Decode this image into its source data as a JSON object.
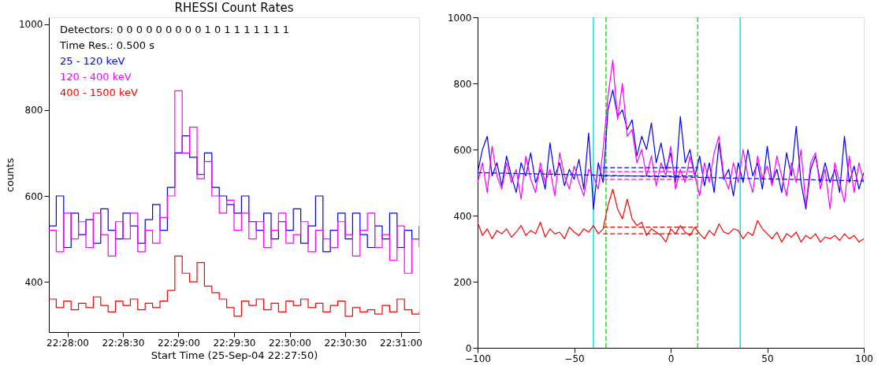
{
  "chart_data": [
    {
      "type": "step",
      "title": "RHESSI Count Rates",
      "xlabel": "Start Time (25-Sep-04 22:27:50)",
      "ylabel": "counts",
      "annotations": [
        "Detectors:  0 0 0 0 0 0 0 0 0 1 0 1 1 1 1 1 1 1",
        "Time Res.: 0.500 s"
      ],
      "legend": "top left",
      "x": [
        22.463889,
        22.465,
        22.466111,
        22.467222,
        22.468333,
        22.469444,
        22.470556,
        22.471667,
        22.472778,
        22.473889,
        22.475,
        22.476111,
        22.477222,
        22.478333,
        22.479444,
        22.480556,
        22.481667,
        22.482778,
        22.483889,
        22.485,
        22.486111,
        22.487222,
        22.488333,
        22.489444,
        22.490556,
        22.491667,
        22.492778,
        22.493889,
        22.495,
        22.496111,
        22.497222,
        22.498333,
        22.499444,
        22.500556,
        22.501667,
        22.502778,
        22.503889,
        22.505,
        22.506111,
        22.507222,
        22.508333,
        22.509444,
        22.510556,
        22.511667,
        22.512778,
        22.513889,
        22.515,
        22.516111,
        22.517222,
        22.518333,
        22.519444
      ],
      "series": [
        {
          "name": " 25 - 120 keV",
          "color": "#0000ff",
          "values": [
            530,
            600,
            480,
            560,
            510,
            545,
            490,
            570,
            520,
            500,
            560,
            530,
            490,
            545,
            580,
            520,
            620,
            700,
            740,
            690,
            650,
            700,
            620,
            600,
            580,
            560,
            600,
            540,
            520,
            560,
            500,
            540,
            520,
            570,
            490,
            530,
            600,
            470,
            520,
            560,
            500,
            560,
            510,
            480,
            530,
            500,
            560,
            480,
            520,
            500,
            530
          ]
        },
        {
          "name": "120 - 400 keV",
          "color": "#ff00ff",
          "values": [
            520,
            470,
            560,
            500,
            540,
            480,
            560,
            510,
            460,
            540,
            500,
            560,
            470,
            520,
            490,
            550,
            600,
            845,
            700,
            760,
            640,
            680,
            600,
            560,
            590,
            520,
            560,
            500,
            540,
            480,
            520,
            560,
            490,
            510,
            540,
            470,
            520,
            500,
            480,
            540,
            510,
            460,
            520,
            560,
            480,
            510,
            450,
            530,
            420,
            500,
            480
          ]
        },
        {
          "name": "400 - 1500 keV",
          "color": "#ff0000",
          "values": [
            360,
            340,
            355,
            335,
            350,
            340,
            365,
            345,
            330,
            355,
            345,
            360,
            335,
            350,
            340,
            355,
            380,
            460,
            420,
            400,
            445,
            390,
            375,
            360,
            340,
            320,
            355,
            345,
            360,
            335,
            350,
            330,
            355,
            345,
            360,
            340,
            350,
            330,
            345,
            355,
            320,
            340,
            330,
            335,
            325,
            345,
            330,
            360,
            335,
            325,
            330
          ]
        }
      ],
      "xlim": [
        22.463889,
        22.519444
      ],
      "xticks": [
        {
          "value": 22.466667,
          "label": "22:28:00"
        },
        {
          "value": 22.475,
          "label": "22:28:30"
        },
        {
          "value": 22.483333,
          "label": "22:29:00"
        },
        {
          "value": 22.491667,
          "label": "22:29:30"
        },
        {
          "value": 22.5,
          "label": "22:30:00"
        },
        {
          "value": 22.508333,
          "label": "22:30:30"
        },
        {
          "value": 22.516667,
          "label": "22:31:00"
        }
      ],
      "ylim": [
        283,
        1016
      ],
      "yticks": [
        400,
        600,
        800,
        1000
      ]
    },
    {
      "type": "line",
      "x": [
        -100,
        -97.5,
        -95,
        -92.5,
        -90,
        -87.5,
        -85,
        -82.5,
        -80,
        -77.5,
        -75,
        -72.5,
        -70,
        -67.5,
        -65,
        -62.5,
        -60,
        -57.5,
        -55,
        -52.5,
        -50,
        -47.5,
        -45,
        -42.5,
        -40,
        -37.5,
        -35,
        -32.5,
        -30,
        -27.5,
        -25,
        -22.5,
        -20,
        -17.5,
        -15,
        -12.5,
        -10,
        -7.5,
        -5,
        -2.5,
        0,
        2.5,
        5,
        7.5,
        10,
        12.5,
        15,
        17.5,
        20,
        22.5,
        25,
        27.5,
        30,
        32.5,
        35,
        37.5,
        40,
        42.5,
        45,
        47.5,
        50,
        52.5,
        55,
        57.5,
        60,
        62.5,
        65,
        67.5,
        70,
        72.5,
        75,
        77.5,
        80,
        82.5,
        85,
        87.5,
        90,
        92.5,
        95,
        97.5,
        100
      ],
      "series": [
        {
          "color": "#0000ff",
          "values": [
            530,
            600,
            640,
            520,
            560,
            490,
            580,
            520,
            470,
            560,
            520,
            590,
            500,
            540,
            480,
            620,
            520,
            560,
            490,
            540,
            510,
            570,
            480,
            650,
            420,
            560,
            500,
            720,
            780,
            700,
            720,
            660,
            690,
            580,
            640,
            600,
            680,
            560,
            620,
            540,
            590,
            500,
            700,
            560,
            600,
            520,
            580,
            490,
            560,
            470,
            620,
            510,
            540,
            460,
            560,
            500,
            600,
            520,
            560,
            480,
            610,
            500,
            540,
            470,
            590,
            520,
            670,
            500,
            420,
            540,
            580,
            500,
            560,
            500,
            540,
            470,
            640,
            500,
            550,
            480,
            530
          ]
        },
        {
          "color": "#ff00ff",
          "values": [
            500,
            560,
            470,
            610,
            520,
            480,
            560,
            500,
            540,
            450,
            580,
            510,
            470,
            560,
            500,
            540,
            460,
            590,
            520,
            480,
            550,
            500,
            460,
            540,
            520,
            480,
            600,
            760,
            870,
            690,
            800,
            640,
            660,
            560,
            600,
            520,
            580,
            490,
            560,
            520,
            610,
            480,
            540,
            500,
            580,
            520,
            460,
            560,
            500,
            590,
            640,
            520,
            480,
            560,
            500,
            600,
            520,
            470,
            580,
            510,
            550,
            490,
            580,
            520,
            460,
            560,
            500,
            600,
            430,
            560,
            590,
            480,
            540,
            420,
            560,
            500,
            440,
            580,
            470,
            560,
            500
          ]
        },
        {
          "color": "#ff0000",
          "values": [
            380,
            340,
            360,
            330,
            355,
            345,
            360,
            335,
            350,
            370,
            340,
            355,
            345,
            380,
            335,
            360,
            345,
            350,
            330,
            365,
            350,
            340,
            360,
            350,
            370,
            345,
            360,
            430,
            480,
            420,
            390,
            450,
            390,
            370,
            380,
            340,
            360,
            350,
            340,
            320,
            360,
            345,
            370,
            350,
            340,
            365,
            345,
            330,
            355,
            340,
            375,
            350,
            345,
            360,
            355,
            330,
            350,
            340,
            385,
            360,
            345,
            330,
            350,
            320,
            345,
            335,
            350,
            320,
            340,
            330,
            345,
            320,
            335,
            330,
            340,
            325,
            345,
            330,
            340,
            320,
            330
          ]
        },
        {
          "type": "line",
          "color": "#0000ff",
          "line_style": "dashed",
          "x": [
            -100,
            100
          ],
          "values": [
            530,
            505
          ]
        },
        {
          "type": "line",
          "color": "#0000ff",
          "line_style": "dashed",
          "x": [
            -35,
            14
          ],
          "values": [
            545,
            545
          ]
        },
        {
          "type": "line",
          "color": "#0000ff",
          "line_style": "dashed",
          "x": [
            -35,
            14
          ],
          "values": [
            520,
            520
          ]
        },
        {
          "type": "line",
          "color": "#ff00ff",
          "line_style": "dashed",
          "x": [
            -35,
            14
          ],
          "values": [
            533,
            533
          ]
        },
        {
          "type": "line",
          "color": "#ff00ff",
          "line_style": "dashed",
          "x": [
            -35,
            14
          ],
          "values": [
            510,
            510
          ]
        },
        {
          "type": "line",
          "color": "#ff0000",
          "line_style": "dashed",
          "x": [
            -35,
            14
          ],
          "values": [
            365,
            365
          ]
        },
        {
          "type": "line",
          "color": "#ff0000",
          "line_style": "dashed",
          "x": [
            -35,
            14
          ],
          "values": [
            345,
            345
          ]
        }
      ],
      "ref_lines": [
        {
          "axis": "x",
          "value": -40,
          "color": "#00e5ee",
          "line_style": "solid"
        },
        {
          "axis": "x",
          "value": 36,
          "color": "#00e5ee",
          "line_style": "solid"
        },
        {
          "axis": "x",
          "value": -33.5,
          "color": "#22dd22",
          "line_style": "dashed"
        },
        {
          "axis": "x",
          "value": 14,
          "color": "#22dd22",
          "line_style": "dashed"
        }
      ],
      "xlim": [
        -100,
        100
      ],
      "xticks": [
        -100,
        -50,
        0,
        50,
        100
      ],
      "ylim": [
        0,
        1000
      ],
      "yticks": [
        0,
        200,
        400,
        600,
        800,
        1000
      ]
    }
  ]
}
